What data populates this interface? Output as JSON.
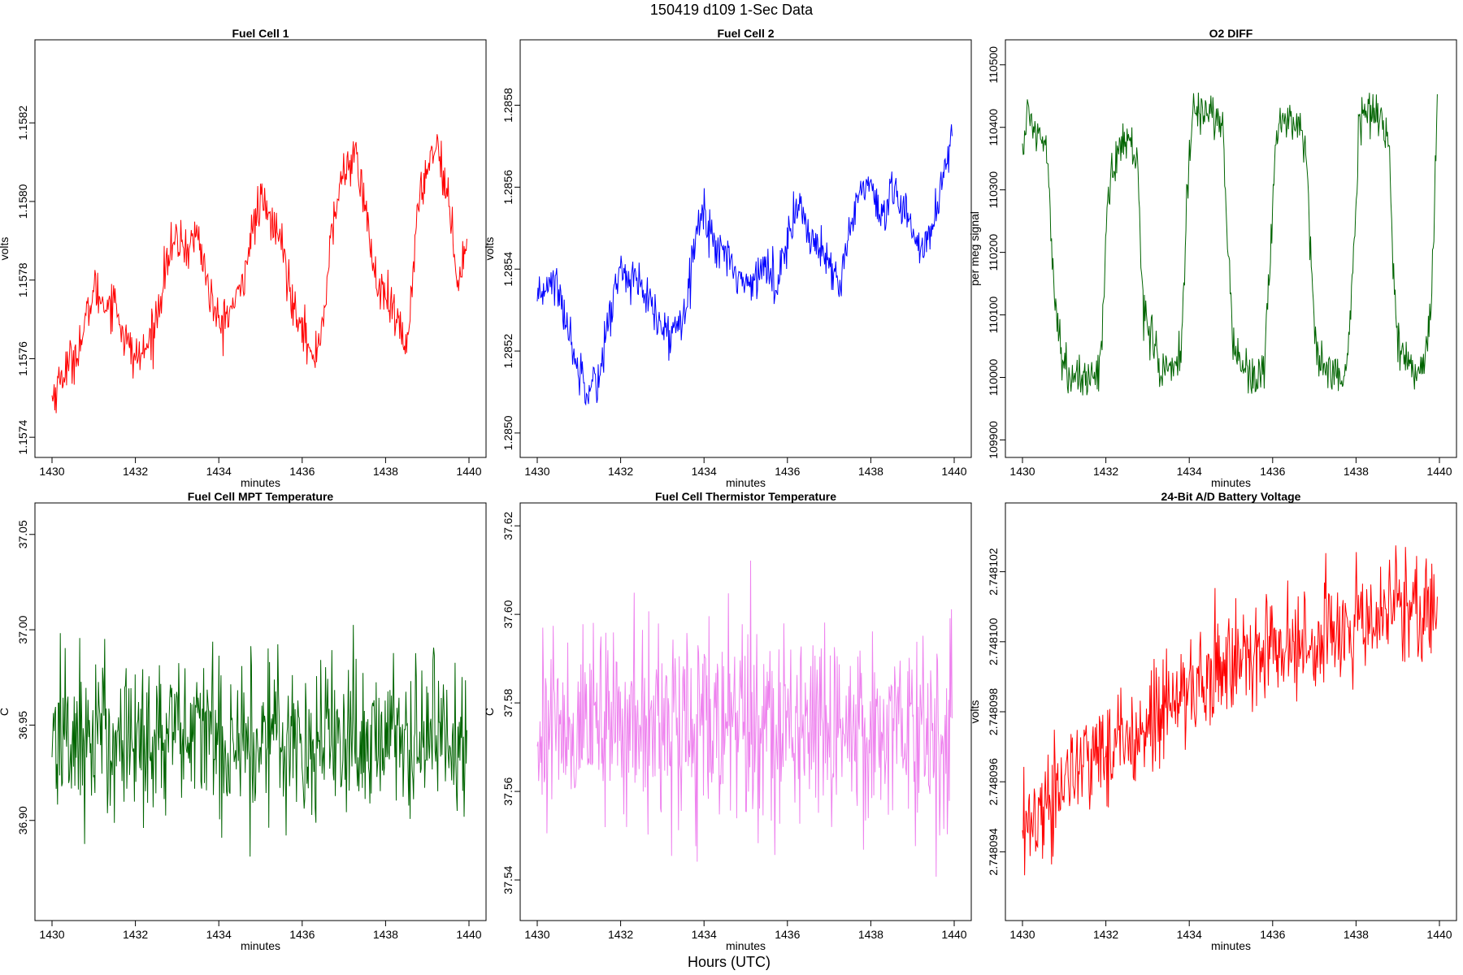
{
  "title": "150419   d109   1-Sec Data",
  "xlabel": "Hours (UTC)",
  "chart_data": [
    {
      "type": "line",
      "id": "fc1",
      "title": "Fuel Cell 1",
      "xlabel": "minutes",
      "ylabel": "volts",
      "color": "#ff0000",
      "xlim": [
        1430,
        1440
      ],
      "ylim": [
        1.15739,
        1.15837
      ],
      "xticks": [
        "1430",
        "1432",
        "1434",
        "1436",
        "1438",
        "1440"
      ],
      "yticks": [
        "1.1574",
        "1.1576",
        "1.1578",
        "1.1580",
        "1.1582"
      ],
      "series": [
        {
          "name": "Fuel Cell 1",
          "x": [
            1430.0,
            1430.25,
            1430.5,
            1430.75,
            1431.0,
            1431.25,
            1431.5,
            1431.75,
            1432.0,
            1432.25,
            1432.5,
            1432.75,
            1433.0,
            1433.25,
            1433.5,
            1433.75,
            1434.0,
            1434.25,
            1434.5,
            1434.75,
            1435.0,
            1435.25,
            1435.5,
            1435.75,
            1436.0,
            1436.25,
            1436.5,
            1436.75,
            1437.0,
            1437.25,
            1437.5,
            1437.75,
            1438.0,
            1438.25,
            1438.5,
            1438.75,
            1439.0,
            1439.25,
            1439.5,
            1439.75,
            1439.95
          ],
          "values": [
            1.1575,
            1.15756,
            1.1576,
            1.15766,
            1.15778,
            1.15774,
            1.15775,
            1.15765,
            1.1576,
            1.15762,
            1.1577,
            1.15785,
            1.1579,
            1.15788,
            1.15792,
            1.15778,
            1.15768,
            1.15772,
            1.15776,
            1.1579,
            1.158,
            1.15795,
            1.1579,
            1.15775,
            1.1577,
            1.15758,
            1.1577,
            1.15795,
            1.15808,
            1.15812,
            1.158,
            1.1578,
            1.15775,
            1.1577,
            1.15762,
            1.15795,
            1.1581,
            1.15815,
            1.158,
            1.1578,
            1.1579
          ]
        }
      ]
    },
    {
      "type": "line",
      "id": "fc2",
      "title": "Fuel Cell 2",
      "xlabel": "minutes",
      "ylabel": "volts",
      "color": "#0000ff",
      "xlim": [
        1430,
        1440
      ],
      "ylim": [
        1.28498,
        1.28592
      ],
      "xticks": [
        "1430",
        "1432",
        "1434",
        "1436",
        "1438",
        "1440"
      ],
      "yticks": [
        "1.2850",
        "1.2852",
        "1.2854",
        "1.2856",
        "1.2858"
      ],
      "series": [
        {
          "name": "Fuel Cell 2",
          "x": [
            1430.0,
            1430.25,
            1430.5,
            1430.75,
            1431.0,
            1431.25,
            1431.5,
            1431.75,
            1432.0,
            1432.25,
            1432.5,
            1432.75,
            1433.0,
            1433.25,
            1433.5,
            1433.75,
            1434.0,
            1434.25,
            1434.5,
            1434.75,
            1435.0,
            1435.25,
            1435.5,
            1435.75,
            1436.0,
            1436.25,
            1436.5,
            1436.75,
            1437.0,
            1437.25,
            1437.5,
            1437.75,
            1438.0,
            1438.25,
            1438.5,
            1438.75,
            1439.0,
            1439.25,
            1439.5,
            1439.75,
            1439.95
          ],
          "values": [
            1.2853,
            1.28538,
            1.28535,
            1.28525,
            1.28515,
            1.28512,
            1.28514,
            1.2853,
            1.2854,
            1.28538,
            1.28535,
            1.2853,
            1.28525,
            1.28524,
            1.2853,
            1.28545,
            1.28555,
            1.28545,
            1.28545,
            1.2854,
            1.28535,
            1.2854,
            1.2854,
            1.28535,
            1.2855,
            1.28555,
            1.2855,
            1.28545,
            1.2854,
            1.28535,
            1.2855,
            1.2856,
            1.2856,
            1.2855,
            1.28558,
            1.28555,
            1.2855,
            1.28545,
            1.2855,
            1.28565,
            1.28572
          ]
        }
      ]
    },
    {
      "type": "line",
      "id": "o2",
      "title": "O2 DIFF",
      "xlabel": "minutes",
      "ylabel": "per meg signal",
      "color": "#006400",
      "xlim": [
        1430,
        1440
      ],
      "ylim": [
        109898,
        110514
      ],
      "xticks": [
        "1430",
        "1432",
        "1434",
        "1436",
        "1438",
        "1440"
      ],
      "yticks": [
        "109900",
        "110000",
        "110100",
        "110200",
        "110300",
        "110400",
        "110500"
      ],
      "series": [
        {
          "name": "O2 DIFF",
          "x": [
            1430.0,
            1430.15,
            1430.35,
            1430.55,
            1430.62,
            1430.75,
            1430.9,
            1431.2,
            1431.5,
            1431.8,
            1431.9,
            1432.05,
            1432.4,
            1432.6,
            1432.75,
            1432.9,
            1433.3,
            1433.6,
            1433.8,
            1433.95,
            1434.1,
            1434.4,
            1434.6,
            1434.8,
            1434.9,
            1435.05,
            1435.4,
            1435.6,
            1435.8,
            1435.95,
            1436.1,
            1436.4,
            1436.6,
            1436.8,
            1436.9,
            1437.05,
            1437.4,
            1437.6,
            1437.8,
            1437.95,
            1438.1,
            1438.5,
            1438.65,
            1438.8,
            1438.9,
            1439.05,
            1439.4,
            1439.6,
            1439.8,
            1439.95
          ],
          "values": [
            110370,
            110420,
            110390,
            110380,
            110350,
            110150,
            110050,
            109990,
            110000,
            110010,
            110050,
            110300,
            110380,
            110370,
            110340,
            110120,
            110010,
            110020,
            110030,
            110300,
            110420,
            110430,
            110420,
            110400,
            110250,
            110050,
            110010,
            110000,
            110020,
            110200,
            110400,
            110420,
            110400,
            110370,
            110200,
            110050,
            110010,
            110000,
            110020,
            110200,
            110420,
            110430,
            110410,
            110360,
            110150,
            110040,
            110010,
            110020,
            110100,
            110450
          ]
        }
      ]
    },
    {
      "type": "line",
      "id": "mpt",
      "title": "Fuel Cell MPT Temperature",
      "xlabel": "minutes",
      "ylabel": "C",
      "color": "#006400",
      "xlim": [
        1430,
        1440
      ],
      "ylim": [
        36.856,
        37.058
      ],
      "xticks": [
        "1430",
        "1432",
        "1434",
        "1436",
        "1438",
        "1440"
      ],
      "yticks": [
        "36.90",
        "36.95",
        "37.00",
        "37.05"
      ],
      "series": [
        {
          "name": "Fuel Cell MPT Temperature",
          "mean": 36.944,
          "noise": 0.022
        }
      ]
    },
    {
      "type": "line",
      "id": "therm",
      "title": "Fuel Cell Thermistor Temperature",
      "xlabel": "minutes",
      "ylabel": "C",
      "color": "#ee82ee",
      "xlim": [
        1430,
        1440
      ],
      "ylim": [
        37.5345,
        37.6215
      ],
      "xticks": [
        "1430",
        "1432",
        "1434",
        "1436",
        "1438",
        "1440"
      ],
      "yticks": [
        "37.54",
        "37.56",
        "37.58",
        "37.60",
        "37.62"
      ],
      "series": [
        {
          "name": "Fuel Cell Thermistor Temperature",
          "mean": 37.575,
          "noise": 0.011
        }
      ]
    },
    {
      "type": "line",
      "id": "batt",
      "title": "24-Bit A/D Battery Voltage",
      "xlabel": "minutes",
      "ylabel": "volts",
      "color": "#ff0000",
      "xlim": [
        1430,
        1440
      ],
      "ylim": [
        2.7480925,
        2.7481035
      ],
      "xticks": [
        "1430",
        "1432",
        "1434",
        "1436",
        "1438",
        "1440"
      ],
      "yticks": [
        "2.748094",
        "2.748096",
        "2.748098",
        "2.748100",
        "2.748102"
      ],
      "series": [
        {
          "name": "24-Bit A/D Battery Voltage",
          "x": [
            1430.0,
            1431.0,
            1432.0,
            1433.0,
            1434.0,
            1435.0,
            1436.0,
            1437.0,
            1438.0,
            1439.0,
            1439.95
          ],
          "values": [
            2.7480945,
            2.748096,
            2.748097,
            2.7480978,
            2.7480985,
            2.7480993,
            2.7480998,
            2.7481,
            2.7481005,
            2.748101,
            2.7481012
          ],
          "noise": 8e-07
        }
      ]
    }
  ]
}
